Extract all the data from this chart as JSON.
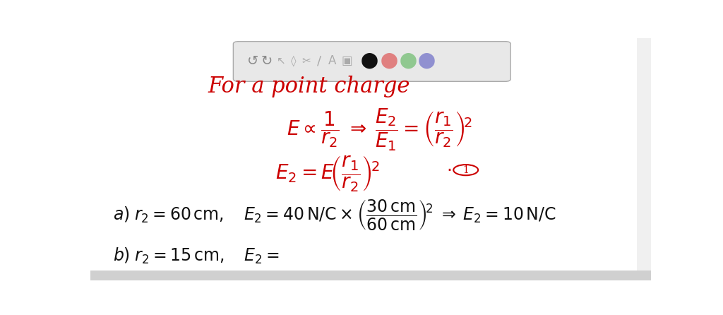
{
  "bg_color": "#ffffff",
  "toolbar_bg": "#e8e8e8",
  "red_color": "#cc0000",
  "black_color": "#111111",
  "toolbar_syms": [
    [
      0.29,
      "↺",
      "#888888",
      14
    ],
    [
      0.315,
      "↻",
      "#888888",
      14
    ],
    [
      0.34,
      "↖",
      "#aaaaaa",
      11
    ],
    [
      0.362,
      "◊",
      "#aaaaaa",
      11
    ],
    [
      0.385,
      "✂",
      "#aaaaaa",
      11
    ],
    [
      0.408,
      "/",
      "#aaaaaa",
      13
    ],
    [
      0.432,
      "A",
      "#aaaaaa",
      12
    ],
    [
      0.458,
      "▣",
      "#aaaaaa",
      12
    ],
    [
      0.498,
      "⬤",
      "#111111",
      16
    ],
    [
      0.533,
      "⬤",
      "#e08080",
      16
    ],
    [
      0.567,
      "⬤",
      "#90c890",
      16
    ],
    [
      0.6,
      "⬤",
      "#9090d0",
      16
    ]
  ]
}
